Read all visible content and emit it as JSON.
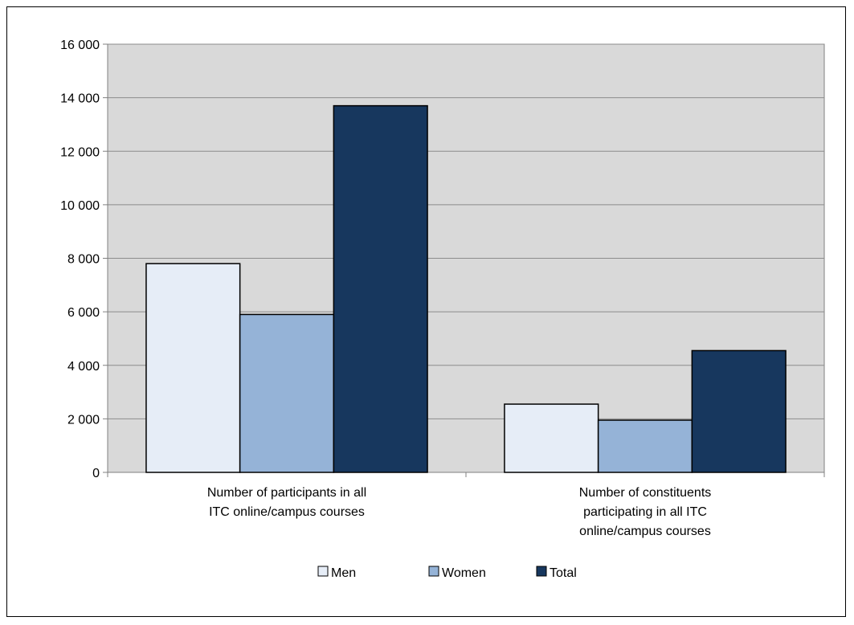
{
  "chart_data": {
    "type": "bar",
    "categories": [
      [
        "Number of participants in all",
        "ITC online/campus courses"
      ],
      [
        "Number of constituents",
        "participating in all ITC",
        "online/campus courses"
      ]
    ],
    "series": [
      {
        "name": "Men",
        "values": [
          7800,
          2550
        ],
        "color": "#e6edf7"
      },
      {
        "name": "Women",
        "values": [
          5900,
          1950
        ],
        "color": "#95b3d7"
      },
      {
        "name": "Total",
        "values": [
          13700,
          4550
        ],
        "color": "#17375e"
      }
    ],
    "ylim": [
      0,
      16000
    ],
    "yticks": [
      "0",
      "2 000",
      "4 000",
      "6 000",
      "8 000",
      "10 000",
      "12 000",
      "14 000",
      "16 000"
    ],
    "ytick_values": [
      0,
      2000,
      4000,
      6000,
      8000,
      10000,
      12000,
      14000,
      16000
    ],
    "grid": true,
    "plot_background": "#d9d9d9",
    "legend_position": "bottom",
    "title": "",
    "xlabel": "",
    "ylabel": ""
  }
}
